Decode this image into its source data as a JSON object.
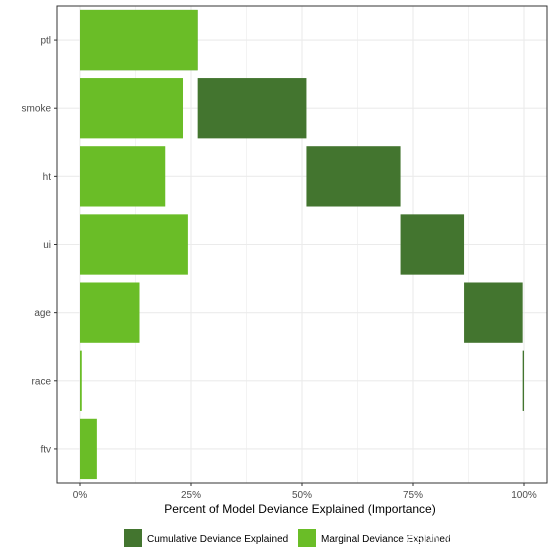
{
  "chart_data": {
    "type": "bar",
    "orientation": "horizontal",
    "xlabel": "Percent of Model Deviance Explained (Importance)",
    "ylabel": "",
    "xlim": [
      0,
      1
    ],
    "x_ticks": [
      {
        "value": 0,
        "label": "0%"
      },
      {
        "value": 0.25,
        "label": "25%"
      },
      {
        "value": 0.5,
        "label": "50%"
      },
      {
        "value": 0.75,
        "label": "75%"
      },
      {
        "value": 1.0,
        "label": "100%"
      }
    ],
    "categories": [
      "ptl",
      "smoke",
      "ht",
      "ui",
      "age",
      "race",
      "ftv"
    ],
    "series": [
      {
        "name": "Cumulative Deviance Explained",
        "color": "#43752f",
        "segments": [
          {
            "start": 0.0,
            "end": 0.265
          },
          {
            "start": 0.265,
            "end": 0.51
          },
          {
            "start": 0.51,
            "end": 0.722
          },
          {
            "start": 0.722,
            "end": 0.865
          },
          {
            "start": 0.865,
            "end": 0.997
          },
          {
            "start": 0.997,
            "end": 1.0
          },
          {
            "start": 1.0,
            "end": 1.0
          }
        ]
      },
      {
        "name": "Marginal Deviance Explained",
        "color": "#6abd27",
        "values": [
          0.265,
          0.232,
          0.192,
          0.243,
          0.134,
          0.004,
          0.038
        ]
      }
    ],
    "grid": true,
    "legend_position": "bottom",
    "background": "#ffffff",
    "grid_color": "#ebebeb"
  },
  "watermark": "CSDN @天桥下的卖艺者"
}
